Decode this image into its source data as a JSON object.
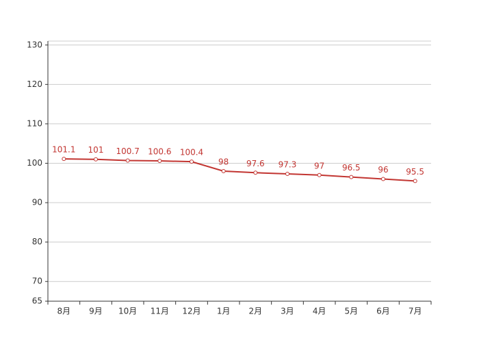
{
  "chart_data": {
    "type": "line",
    "categories": [
      "8月",
      "9月",
      "10月",
      "11月",
      "12月",
      "1月",
      "2月",
      "3月",
      "4月",
      "5月",
      "6月",
      "7月"
    ],
    "values": [
      101.1,
      101,
      100.7,
      100.6,
      100.4,
      98,
      97.6,
      97.3,
      97,
      96.5,
      96,
      95.5
    ],
    "color": "#c23531",
    "ylim": [
      65,
      131
    ],
    "yticks": [
      65,
      70,
      80,
      90,
      100,
      110,
      120,
      130
    ],
    "grid": true
  }
}
